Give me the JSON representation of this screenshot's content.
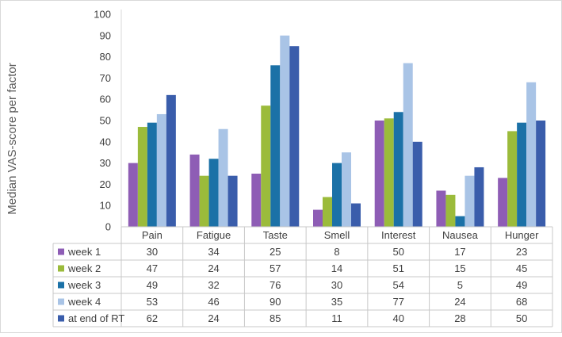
{
  "chart_data": {
    "type": "bar",
    "title": "",
    "xlabel": "",
    "ylabel": "Median VAS-score per factor",
    "ylim": [
      0,
      100
    ],
    "yticks": [
      0,
      10,
      20,
      30,
      40,
      50,
      60,
      70,
      80,
      90,
      100
    ],
    "grid": false,
    "legend": "data-table",
    "categories": [
      "Pain",
      "Fatigue",
      "Taste",
      "Smell",
      "Interest",
      "Nausea",
      "Hunger"
    ],
    "series": [
      {
        "name": "week 1",
        "color": "#8e5db5",
        "values": [
          30,
          34,
          25,
          8,
          50,
          17,
          23
        ]
      },
      {
        "name": "week 2",
        "color": "#9bbb3b",
        "values": [
          47,
          24,
          57,
          14,
          51,
          15,
          45
        ]
      },
      {
        "name": "week 3",
        "color": "#1b71a7",
        "values": [
          49,
          32,
          76,
          30,
          54,
          5,
          49
        ]
      },
      {
        "name": "week 4",
        "color": "#a9c4e6",
        "values": [
          53,
          46,
          90,
          35,
          77,
          24,
          68
        ]
      },
      {
        "name": "at end of RT",
        "color": "#3a5dab",
        "values": [
          62,
          24,
          85,
          11,
          40,
          28,
          50
        ]
      }
    ]
  }
}
